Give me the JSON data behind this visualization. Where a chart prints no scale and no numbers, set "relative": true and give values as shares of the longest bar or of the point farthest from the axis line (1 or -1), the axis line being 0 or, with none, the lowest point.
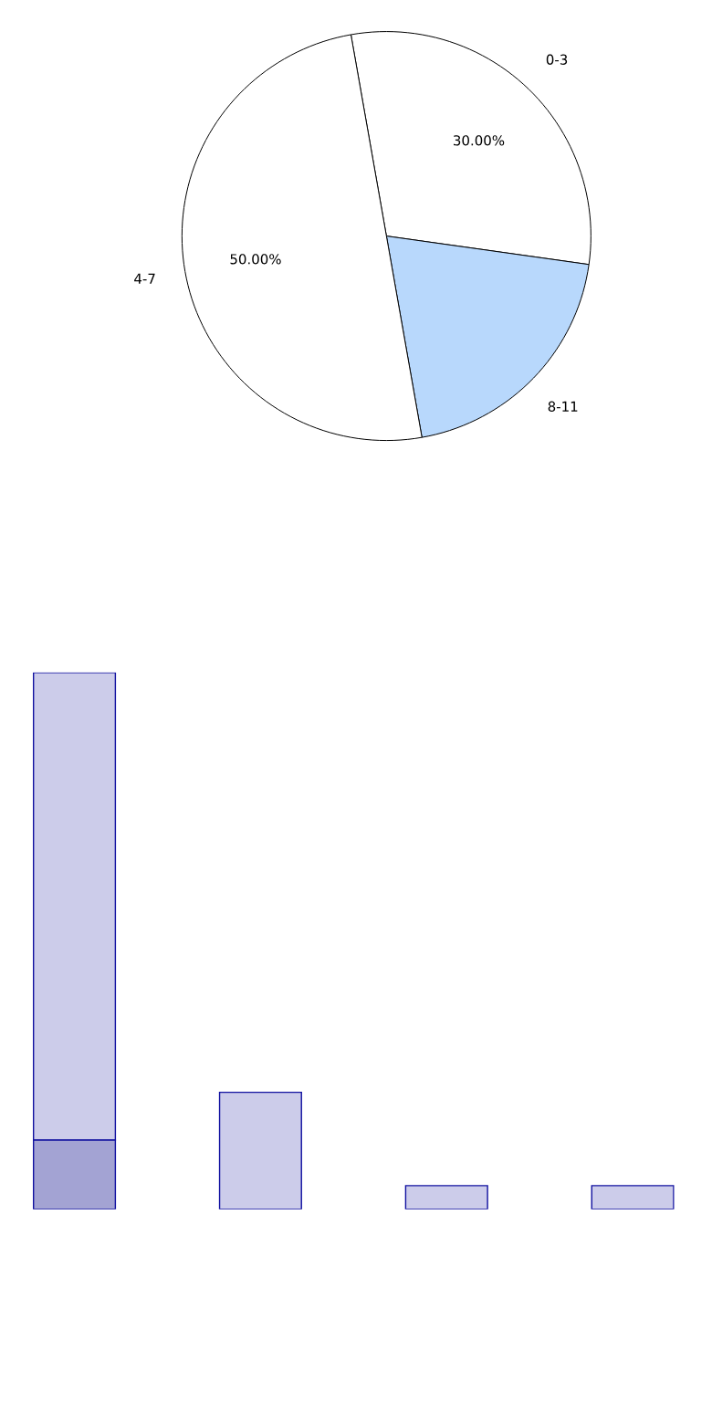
{
  "chart_data": [
    {
      "type": "pie",
      "categories": [
        "0-3",
        "8-11",
        "4-7"
      ],
      "values": [
        30,
        20,
        50
      ],
      "colors": [
        "#ffffff",
        "#b8d8fc",
        "#ffffff"
      ],
      "value_labels": [
        "30.00%",
        null,
        "50.00%"
      ]
    },
    {
      "type": "bar",
      "stacked": true,
      "relative": true,
      "categories": [
        null,
        null,
        null,
        null
      ],
      "series": [
        {
          "color": "#a3a3d3",
          "values": [
            0.129,
            0,
            0,
            0
          ]
        },
        {
          "color": "#ccccea",
          "values": [
            0.871,
            0.218,
            0.044,
            0.044
          ]
        }
      ]
    }
  ]
}
